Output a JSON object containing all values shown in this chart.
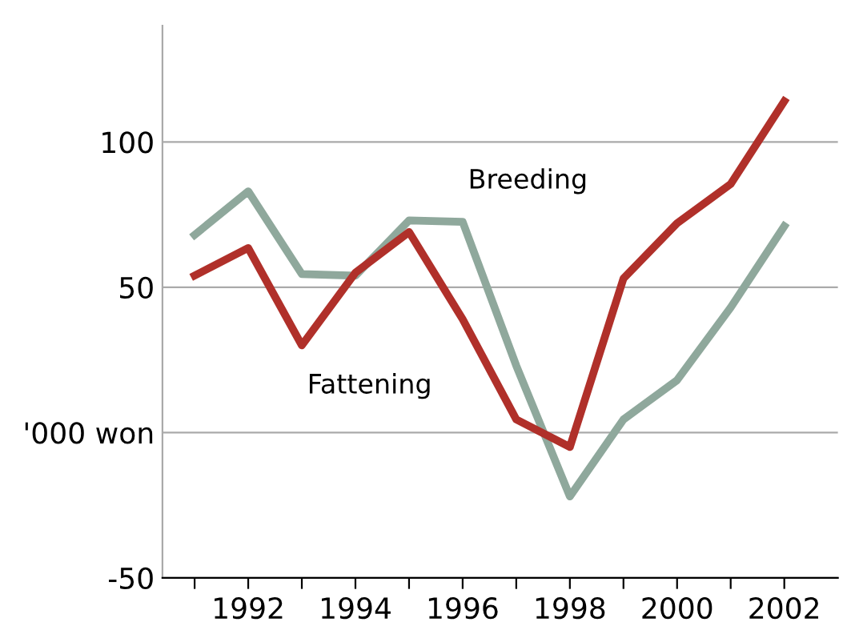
{
  "chart_data": {
    "type": "line",
    "x": [
      1991,
      1992,
      1993,
      1994,
      1995,
      1996,
      1997,
      1998,
      1999,
      2000,
      2001,
      2002
    ],
    "series": [
      {
        "name": "Breeding",
        "color": "#8fa89c",
        "values": [
          68,
          83,
          54.5,
          54,
          73,
          72.5,
          23,
          -22,
          4.5,
          18,
          43,
          71
        ]
      },
      {
        "name": "Fattening",
        "color": "#b0302a",
        "values": [
          54,
          63.5,
          30,
          55,
          69,
          39,
          4.5,
          -5,
          53,
          72,
          85.5,
          114
        ]
      }
    ],
    "xlim": [
      1990.4,
      2003
    ],
    "ylim": [
      -50,
      140
    ],
    "xticks": [
      {
        "value": 1991,
        "label": null
      },
      1992,
      {
        "value": 1993,
        "label": null
      },
      1994,
      {
        "value": 1995,
        "label": null
      },
      1996,
      {
        "value": 1997,
        "label": null
      },
      1998,
      {
        "value": 1999,
        "label": null
      },
      2000,
      {
        "value": 2001,
        "label": null
      },
      2002
    ],
    "yticks": [
      -50,
      {
        "value": 0,
        "label": "'000 won"
      },
      50,
      100
    ],
    "grid": "y",
    "legend": false,
    "line_style": "solid",
    "marker": "none"
  }
}
